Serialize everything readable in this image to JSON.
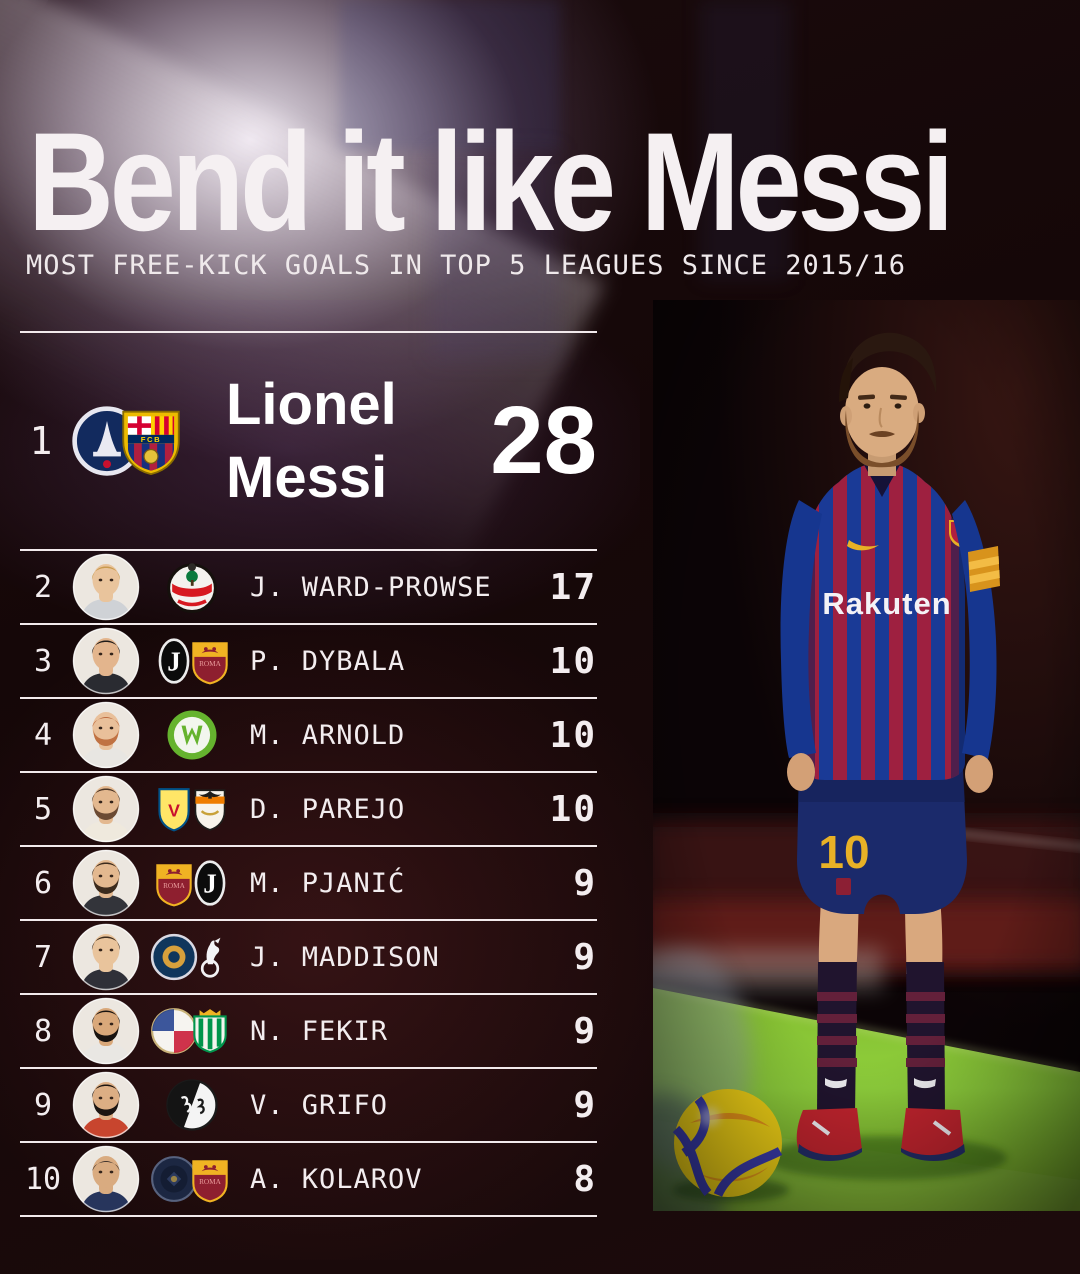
{
  "header": {
    "title": "Bend it like Messi",
    "subtitle": "MOST FREE-KICK GOALS IN TOP 5 LEAGUES SINCE 2015/16"
  },
  "list": {
    "leader": {
      "rank": "1",
      "name_line1": "Lionel",
      "name_line2": "Messi",
      "value": "28",
      "badges": [
        "psg",
        "barcelona"
      ]
    },
    "rows": [
      {
        "rank": "2",
        "name": "J. WARD-PROWSE",
        "value": "17",
        "badges": [
          "southampton"
        ],
        "avatar": {
          "skin": "#e9c49c",
          "hair": "#c99a4e",
          "shirt": "#cfd2d6",
          "beard": null,
          "buzz": false
        }
      },
      {
        "rank": "3",
        "name": "P. DYBALA",
        "value": "10",
        "badges": [
          "juventus",
          "roma"
        ],
        "avatar": {
          "skin": "#e3b58d",
          "hair": "#1f1b19",
          "shirt": "#2a2b31",
          "beard": null,
          "buzz": false
        }
      },
      {
        "rank": "4",
        "name": "M. ARNOLD",
        "value": "10",
        "badges": [
          "wolfsburg"
        ],
        "avatar": {
          "skin": "#e9c09a",
          "hair": "#b65f33",
          "shirt": "#e8e6e2",
          "beard": "#c07243",
          "buzz": true
        }
      },
      {
        "rank": "5",
        "name": "D. PAREJO",
        "value": "10",
        "badges": [
          "villarreal",
          "valencia"
        ],
        "avatar": {
          "skin": "#e3b88f",
          "hair": "#4a3425",
          "shirt": "#efe9dd",
          "beard": "#6b4a33",
          "buzz": false
        }
      },
      {
        "rank": "6",
        "name": "M. PJANIĆ",
        "value": "9",
        "badges": [
          "roma",
          "juventus"
        ],
        "avatar": {
          "skin": "#e3b88f",
          "hair": "#3c2b1d",
          "shirt": "#33343a",
          "beard": "#3c2b1d",
          "buzz": false
        }
      },
      {
        "rank": "7",
        "name": "J. MADDISON",
        "value": "9",
        "badges": [
          "leicester",
          "tottenham"
        ],
        "avatar": {
          "skin": "#e9c49c",
          "hair": "#3f2d1e",
          "shirt": "#2f3038",
          "beard": null,
          "buzz": false
        }
      },
      {
        "rank": "8",
        "name": "N. FEKIR",
        "value": "9",
        "badges": [
          "lyon",
          "betis"
        ],
        "avatar": {
          "skin": "#d9a87a",
          "hair": "#181310",
          "shirt": "#e9e7e3",
          "beard": "#181310",
          "buzz": false
        }
      },
      {
        "rank": "9",
        "name": "V. GRIFO",
        "value": "9",
        "badges": [
          "freiburg"
        ],
        "avatar": {
          "skin": "#dcae84",
          "hair": "#1c1512",
          "shirt": "#c8452e",
          "beard": "#1c1512",
          "buzz": false
        }
      },
      {
        "rank": "10",
        "name": "A. KOLAROV",
        "value": "8",
        "badges": [
          "mancity",
          "roma"
        ],
        "avatar": {
          "skin": "#d9ab80",
          "hair": "#2a2220",
          "shirt": "#27355c",
          "beard": null,
          "buzz": true
        }
      }
    ]
  },
  "badge_labels": {
    "barcelona": "FCB",
    "juventus": "J",
    "roma": "ROMA",
    "villarreal": "V"
  },
  "photo": {
    "sponsor": "Rakuten",
    "shorts_number": "10"
  },
  "colors": {
    "background": "#150708",
    "divider_line": "#f2eaec",
    "text": "#f4eef0",
    "accent_yellow": "#e8b126",
    "shirt_blue": "#1a3a96",
    "shirt_red": "#9e2040",
    "shorts_navy": "#1b2a6b",
    "grass_green": "#7cb32c",
    "ball_yellow": "#f5d516"
  }
}
